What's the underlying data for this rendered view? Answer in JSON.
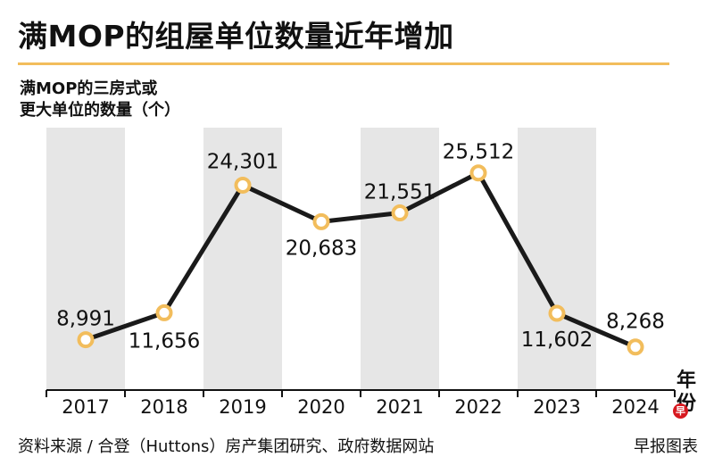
{
  "title": "满MOP的组屋单位数量近年增加",
  "y_label_line1": "满MOP的三房式或",
  "y_label_line2": "更大单位的数量（个）",
  "x_unit": "年份",
  "source": "资料来源 / 合登（Huttons）房产集团研究、政府数据网站",
  "credit": "早报图表",
  "logo_char": "早",
  "colors": {
    "line": "#1a1a1a",
    "marker_fill": "#ffffff",
    "marker_stroke": "#f2bd5c",
    "band": "#e6e6e6",
    "accent": "#f2bd5c",
    "logo": "#d71920"
  },
  "chart_data": {
    "type": "line",
    "title": "满MOP的组屋单位数量近年增加",
    "xlabel": "年份",
    "ylabel": "满MOP的三房式或更大单位的数量（个）",
    "categories": [
      "2017",
      "2018",
      "2019",
      "2020",
      "2021",
      "2022",
      "2023",
      "2024"
    ],
    "series": [
      {
        "name": "满MOP的三房式或更大单位的数量",
        "values": [
          8991,
          11656,
          24301,
          20683,
          21551,
          25512,
          11602,
          8268
        ],
        "labels": [
          "8,991",
          "11,656",
          "24,301",
          "20,683",
          "21,551",
          "25,512",
          "11,602",
          "8,268"
        ]
      }
    ],
    "ylim": [
      4000,
      30000
    ],
    "grid": false,
    "legend": "none"
  }
}
